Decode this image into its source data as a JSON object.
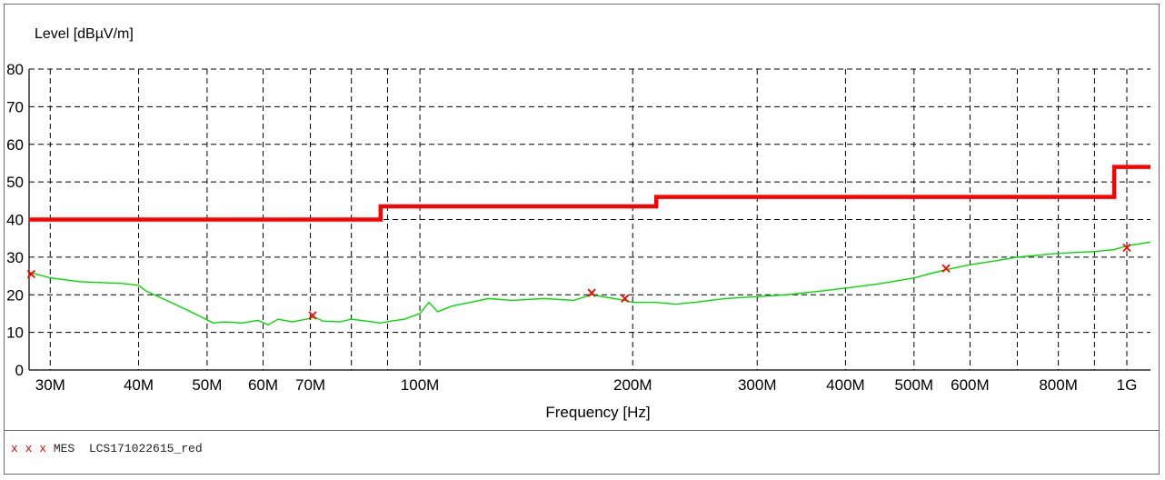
{
  "chart_data": {
    "type": "line",
    "ylabel": "Level [dBµV/m]",
    "xlabel": "Frequency [Hz]",
    "x_scale": "log",
    "xlim": [
      28000000,
      1080000000
    ],
    "ylim": [
      0,
      80
    ],
    "grid": true,
    "x_ticks": [
      {
        "value": 30000000,
        "label": "30M"
      },
      {
        "value": 40000000,
        "label": "40M"
      },
      {
        "value": 50000000,
        "label": "50M"
      },
      {
        "value": 60000000,
        "label": "60M"
      },
      {
        "value": 70000000,
        "label": "70M"
      },
      {
        "value": 100000000,
        "label": "100M"
      },
      {
        "value": 200000000,
        "label": "200M"
      },
      {
        "value": 300000000,
        "label": "300M"
      },
      {
        "value": 400000000,
        "label": "400M"
      },
      {
        "value": 500000000,
        "label": "500M"
      },
      {
        "value": 600000000,
        "label": "600M"
      },
      {
        "value": 800000000,
        "label": "800M"
      },
      {
        "value": 1000000000,
        "label": "1G"
      }
    ],
    "x_gridlines": [
      30000000,
      40000000,
      50000000,
      60000000,
      70000000,
      80000000,
      90000000,
      100000000,
      200000000,
      300000000,
      400000000,
      500000000,
      600000000,
      700000000,
      800000000,
      900000000,
      1000000000
    ],
    "y_ticks": [
      0,
      10,
      20,
      30,
      40,
      50,
      60,
      70,
      80
    ],
    "series": [
      {
        "role": "limit",
        "color": "#ff0000",
        "step": true,
        "points": [
          [
            28000000,
            40
          ],
          [
            88000000,
            40
          ],
          [
            88000000,
            43.5
          ],
          [
            216000000,
            43.5
          ],
          [
            216000000,
            46
          ],
          [
            960000000,
            46
          ],
          [
            960000000,
            54
          ],
          [
            1080000000,
            54
          ]
        ]
      },
      {
        "role": "scan",
        "color": "#00dd00",
        "points": [
          [
            28000000,
            26
          ],
          [
            30000000,
            24.5
          ],
          [
            33000000,
            23.5
          ],
          [
            38000000,
            23
          ],
          [
            40000000,
            22.5
          ],
          [
            41000000,
            21
          ],
          [
            45000000,
            17.5
          ],
          [
            48000000,
            15
          ],
          [
            51000000,
            12.5
          ],
          [
            53000000,
            12.8
          ],
          [
            56000000,
            12.5
          ],
          [
            59000000,
            13.2
          ],
          [
            61000000,
            12
          ],
          [
            63000000,
            13.5
          ],
          [
            66000000,
            12.8
          ],
          [
            69000000,
            13.5
          ],
          [
            71000000,
            14
          ],
          [
            73000000,
            13
          ],
          [
            77000000,
            12.8
          ],
          [
            80000000,
            13.5
          ],
          [
            84000000,
            13
          ],
          [
            88000000,
            12.5
          ],
          [
            91000000,
            13
          ],
          [
            95000000,
            13.5
          ],
          [
            100000000,
            15
          ],
          [
            103000000,
            18
          ],
          [
            106000000,
            15.5
          ],
          [
            111000000,
            17
          ],
          [
            118000000,
            18
          ],
          [
            125000000,
            19
          ],
          [
            135000000,
            18.5
          ],
          [
            150000000,
            19
          ],
          [
            165000000,
            18.5
          ],
          [
            175000000,
            20
          ],
          [
            195000000,
            18.5
          ],
          [
            200000000,
            18
          ],
          [
            215000000,
            18
          ],
          [
            230000000,
            17.5
          ],
          [
            245000000,
            18
          ],
          [
            270000000,
            19
          ],
          [
            300000000,
            19.5
          ],
          [
            330000000,
            20
          ],
          [
            370000000,
            21
          ],
          [
            410000000,
            22
          ],
          [
            450000000,
            23
          ],
          [
            500000000,
            24.5
          ],
          [
            550000000,
            26.5
          ],
          [
            600000000,
            28
          ],
          [
            650000000,
            29
          ],
          [
            700000000,
            30
          ],
          [
            800000000,
            31
          ],
          [
            900000000,
            31.5
          ],
          [
            960000000,
            32
          ],
          [
            1000000000,
            33
          ],
          [
            1080000000,
            34
          ]
        ]
      },
      {
        "role": "measurement",
        "name": "MES LCS171022615_red",
        "color": "#ff0000",
        "marker": "x",
        "points": [
          [
            28200000,
            25.5
          ],
          [
            70500000,
            14.5
          ],
          [
            175000000,
            20.5
          ],
          [
            195000000,
            19
          ],
          [
            555000000,
            27
          ],
          [
            1000000000,
            32.5
          ]
        ]
      }
    ]
  },
  "legend": {
    "markers": "x x x",
    "text": "MES  LCS171022615_red"
  }
}
